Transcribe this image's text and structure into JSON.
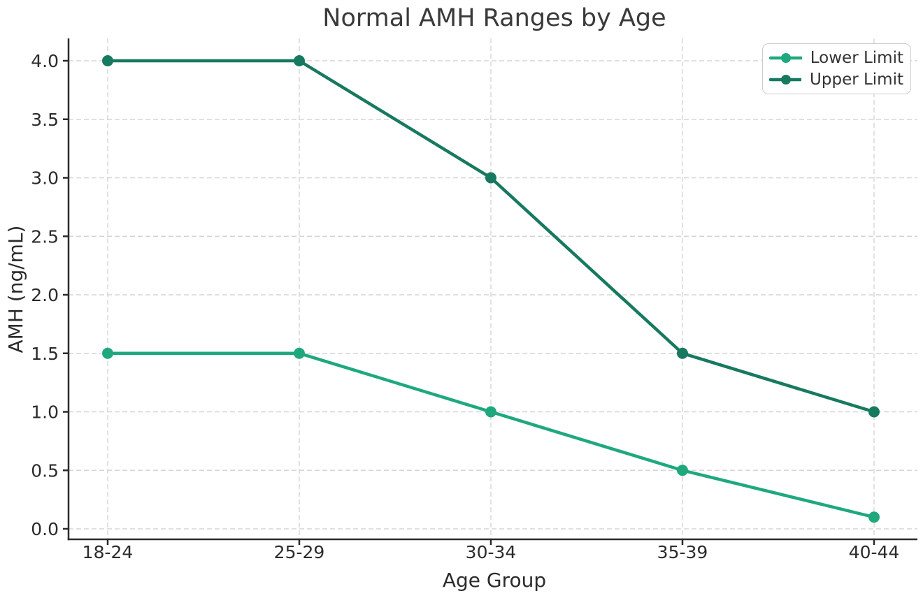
{
  "chart_data": {
    "type": "line",
    "title": "Normal AMH Ranges by Age",
    "xlabel": "Age Group",
    "ylabel": "AMH (ng/mL)",
    "categories": [
      "18-24",
      "25-29",
      "30-34",
      "35-39",
      "40-44"
    ],
    "series": [
      {
        "name": "Lower Limit",
        "color": "#1FA87E",
        "marker": "circle",
        "values": [
          1.5,
          1.5,
          1.0,
          0.5,
          0.1
        ]
      },
      {
        "name": "Upper Limit",
        "color": "#17795F",
        "marker": "circle",
        "values": [
          4.0,
          4.0,
          3.0,
          1.5,
          1.0
        ]
      }
    ],
    "yticks": [
      0.0,
      0.5,
      1.0,
      1.5,
      2.0,
      2.5,
      3.0,
      3.5,
      4.0
    ],
    "ytick_labels": [
      "0.0",
      "0.5",
      "1.0",
      "1.5",
      "2.0",
      "2.5",
      "3.0",
      "3.5",
      "4.0"
    ],
    "ylim": [
      -0.09,
      4.19
    ],
    "grid": "dashed, both axes",
    "legend_position": "upper right"
  },
  "colors": {
    "background": "#ffffff",
    "grid": "#d5d5d5",
    "spine": "#2b2b2b",
    "text": "#2b2b2b",
    "title_text": "#3a3a3a",
    "legend_border": "#cccccc",
    "lower_limit": "#1FA87E",
    "upper_limit": "#17795F"
  }
}
